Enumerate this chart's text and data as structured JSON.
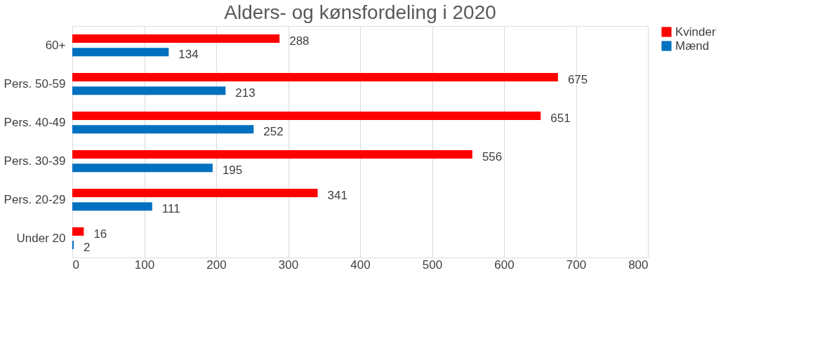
{
  "chart_data": {
    "type": "bar",
    "orientation": "horizontal",
    "title": "Alders- og kønsfordeling i 2020",
    "categories": [
      "60+",
      "Pers. 50-59",
      "Pers. 40-49",
      "Pers. 30-39",
      "Pers. 20-29",
      "Under 20"
    ],
    "series": [
      {
        "name": "Kvinder",
        "color": "#ff0000",
        "values": [
          288,
          675,
          651,
          556,
          341,
          16
        ]
      },
      {
        "name": "Mænd",
        "color": "#0070c0",
        "values": [
          134,
          213,
          252,
          195,
          111,
          2
        ]
      }
    ],
    "xlim": [
      0,
      800
    ],
    "xticks": [
      0,
      100,
      200,
      300,
      400,
      500,
      600,
      700,
      800
    ],
    "grid": "x",
    "legend": "right",
    "data_labels": true
  }
}
